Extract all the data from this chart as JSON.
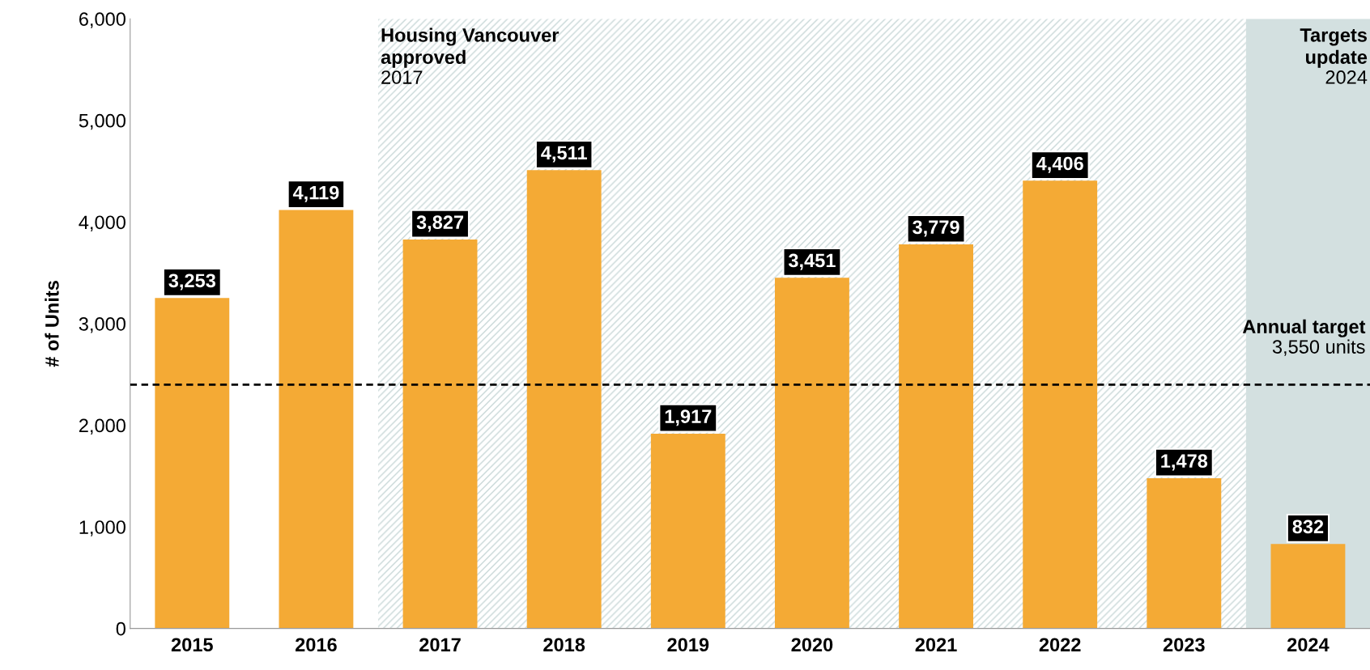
{
  "chart_data": {
    "type": "bar",
    "ylabel": "# of Units",
    "categories": [
      "2015",
      "2016",
      "2017",
      "2018",
      "2019",
      "2020",
      "2021",
      "2022",
      "2023",
      "2024"
    ],
    "values": [
      3253,
      4119,
      3827,
      4511,
      1917,
      3451,
      3779,
      4406,
      1478,
      832
    ],
    "color": "#f4aa35",
    "value_labels": [
      "3,253",
      "4,119",
      "3,827",
      "4,511",
      "1,917",
      "3,451",
      "3,779",
      "4,406",
      "1,478",
      "832"
    ],
    "ylim": [
      0,
      6000
    ],
    "yticks": [
      {
        "value": 0,
        "label": "0"
      },
      {
        "value": 1000,
        "label": "1,000"
      },
      {
        "value": 2000,
        "label": "2,000"
      },
      {
        "value": 3000,
        "label": "3,000"
      },
      {
        "value": 4000,
        "label": "4,000"
      },
      {
        "value": 5000,
        "label": "5,000"
      },
      {
        "value": 6000,
        "label": "6,000"
      }
    ],
    "grid": false,
    "ref_lines": [
      {
        "axis": "y",
        "value": 2400,
        "label": "Annual target\n3,550 units",
        "color": "#000000",
        "line_style": "dashed"
      }
    ],
    "bands": [
      {
        "axis": "x",
        "from": "2017",
        "to": "2023",
        "label": "Housing Vancouver\napproved\n2017",
        "color": "#c9d8d8"
      },
      {
        "axis": "x",
        "from": "2024",
        "to": "2024",
        "label": "Targets\nupdate\n2024",
        "color": "#d3e0e0"
      }
    ]
  }
}
